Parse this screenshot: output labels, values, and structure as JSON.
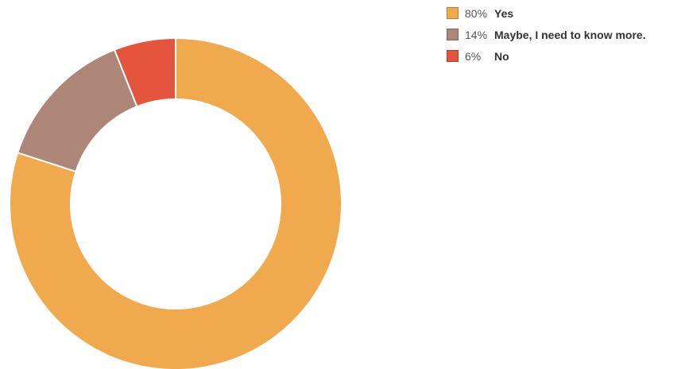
{
  "chart_data": {
    "type": "pie",
    "style": "donut",
    "start_angle_deg": 0,
    "direction": "clockwise",
    "legend_position": "top-right",
    "slices": [
      {
        "label": "Yes",
        "value": 80,
        "percent_label": "80%",
        "color": "#F0A94C"
      },
      {
        "label": "Maybe, I need to know more.",
        "value": 14,
        "percent_label": "14%",
        "color": "#AD8677"
      },
      {
        "label": "No",
        "value": 6,
        "percent_label": "6%",
        "color": "#E5543D"
      }
    ]
  }
}
